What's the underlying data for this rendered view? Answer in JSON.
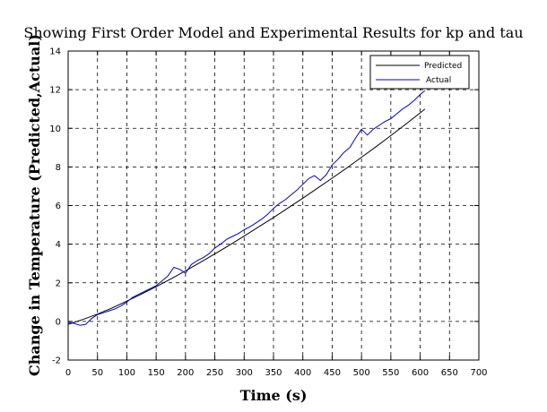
{
  "chart_data": {
    "type": "line",
    "title": "Showing First Order Model and Experimental Results for kp and tau",
    "xlabel": "Time (s)",
    "ylabel": "Change in Temperature (Predicted,Actual)",
    "xlim": [
      0,
      700
    ],
    "ylim": [
      -2,
      14
    ],
    "xticks": [
      0,
      50,
      100,
      150,
      200,
      250,
      300,
      350,
      400,
      450,
      500,
      550,
      600,
      650,
      700
    ],
    "yticks": [
      -2,
      0,
      2,
      4,
      6,
      8,
      10,
      12,
      14
    ],
    "grid": true,
    "legend_position": "top-right",
    "series": [
      {
        "name": "Predicted",
        "color": "#000000",
        "x": [
          0,
          25,
          50,
          75,
          100,
          125,
          150,
          175,
          200,
          225,
          250,
          275,
          300,
          325,
          350,
          375,
          400,
          425,
          450,
          475,
          500,
          525,
          550,
          575,
          600,
          608
        ],
        "y": [
          -0.15,
          0.1,
          0.38,
          0.7,
          1.05,
          1.42,
          1.8,
          2.2,
          2.62,
          3.05,
          3.5,
          3.95,
          4.42,
          4.9,
          5.38,
          5.88,
          6.38,
          6.9,
          7.42,
          7.95,
          8.5,
          9.05,
          9.62,
          10.2,
          10.8,
          11.0
        ]
      },
      {
        "name": "Actual",
        "color": "#0000cc",
        "x": [
          0,
          10,
          20,
          30,
          40,
          50,
          60,
          70,
          80,
          90,
          100,
          110,
          120,
          130,
          140,
          150,
          160,
          170,
          180,
          190,
          200,
          210,
          220,
          230,
          240,
          250,
          260,
          270,
          280,
          290,
          300,
          310,
          320,
          330,
          340,
          350,
          360,
          370,
          380,
          390,
          400,
          410,
          420,
          430,
          440,
          450,
          460,
          470,
          480,
          490,
          500,
          510,
          520,
          530,
          540,
          550,
          560,
          570,
          580,
          590,
          600,
          608
        ],
        "y": [
          -0.05,
          -0.1,
          -0.2,
          -0.15,
          0.15,
          0.35,
          0.45,
          0.55,
          0.65,
          0.8,
          1.0,
          1.25,
          1.4,
          1.55,
          1.7,
          1.85,
          2.1,
          2.35,
          2.8,
          2.7,
          2.5,
          2.95,
          3.15,
          3.3,
          3.5,
          3.8,
          4.0,
          4.25,
          4.4,
          4.55,
          4.75,
          4.9,
          5.1,
          5.3,
          5.55,
          5.85,
          6.1,
          6.3,
          6.55,
          6.8,
          7.1,
          7.4,
          7.55,
          7.3,
          7.6,
          8.1,
          8.4,
          8.75,
          9.0,
          9.5,
          9.95,
          9.65,
          9.95,
          10.15,
          10.35,
          10.5,
          10.75,
          11.0,
          11.2,
          11.45,
          11.75,
          11.95
        ]
      }
    ]
  }
}
